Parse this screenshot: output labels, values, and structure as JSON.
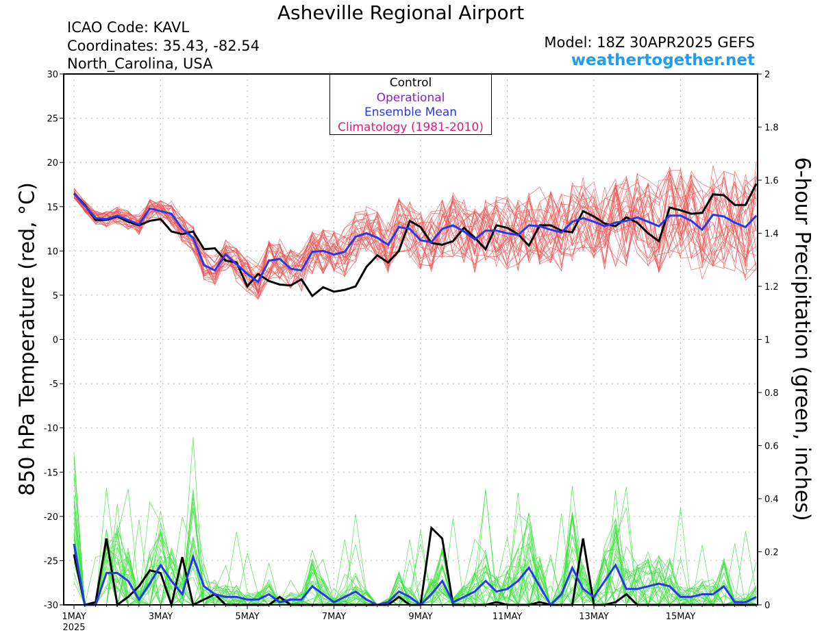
{
  "header": {
    "title": "Asheville Regional Airport",
    "icao": "ICAO Code: KAVL",
    "coords": "Coordinates: 35.43, -82.54",
    "location": "North_Carolina, USA",
    "model": "Model: 18Z 30APR2025 GEFS",
    "site": "weathertogether.net"
  },
  "legend": {
    "control": "Control",
    "operational": "Operational",
    "mean": "Ensemble Mean",
    "climatology": "Climatology (1981-2010)"
  },
  "colors": {
    "control": "#000000",
    "operational": "#8a1cd6",
    "mean": "#2438ee",
    "climatology": "#e8177d",
    "members_temp": "#f05050",
    "members_precip": "#3ee23e"
  },
  "chart_data": {
    "type": "line",
    "ylabel": "850 hPa Temperature (red, °C)",
    "y2label": "6-hour Precipitation (green, inches)",
    "ylim": [
      -30,
      30
    ],
    "y2lim": [
      0,
      2
    ],
    "yticks": [
      "30",
      "25",
      "20",
      "15",
      "10",
      "5",
      "0",
      "-5",
      "-10",
      "-15",
      "-20",
      "-25",
      "-30"
    ],
    "y2ticks": [
      "2",
      "1.8",
      "1.6",
      "1.4",
      "1.2",
      "1",
      "0.8",
      "0.6",
      "0.4",
      "0.2",
      "0"
    ],
    "xticks": [
      {
        "day": 1,
        "label": "1MAY",
        "sub": "2025"
      },
      {
        "day": 3,
        "label": "3MAY",
        "sub": ""
      },
      {
        "day": 5,
        "label": "5MAY",
        "sub": ""
      },
      {
        "day": 7,
        "label": "7MAY",
        "sub": ""
      },
      {
        "day": 9,
        "label": "9MAY",
        "sub": ""
      },
      {
        "day": 11,
        "label": "11MAY",
        "sub": ""
      },
      {
        "day": 13,
        "label": "13MAY",
        "sub": ""
      },
      {
        "day": 15,
        "label": "15MAY",
        "sub": ""
      }
    ],
    "xrange_days": [
      1,
      17
    ],
    "grid": true,
    "legend_position": "top-center",
    "step_days": 0.25,
    "series": [
      {
        "name": "Control",
        "axis": "temp",
        "values": [
          16.5,
          15.2,
          13.5,
          13.5,
          13.9,
          13.3,
          12.9,
          13.4,
          13.6,
          12.2,
          11.9,
          12.2,
          10.2,
          10.3,
          8.9,
          8.7,
          6.0,
          7.4,
          6.6,
          6.2,
          6.1,
          6.8,
          4.9,
          5.9,
          5.4,
          5.6,
          6.0,
          8.2,
          9.5,
          8.7,
          10.0,
          13.4,
          12.7,
          10.9,
          10.7,
          11.1,
          12.6,
          11.5,
          10.2,
          12.9,
          12.6,
          11.9,
          10.6,
          12.9,
          12.9,
          12.3,
          12.1,
          14.5,
          13.9,
          13.1,
          12.8,
          13.8,
          13.2,
          12.0,
          11.1,
          14.9,
          14.6,
          14.2,
          14.3,
          16.4,
          16.3,
          15.2,
          15.2,
          17.6
        ]
      },
      {
        "name": "Ensemble Mean",
        "axis": "temp",
        "values": [
          16.5,
          15.1,
          13.7,
          13.6,
          14.0,
          13.5,
          13.0,
          14.8,
          14.5,
          14.2,
          12.5,
          11.5,
          8.4,
          7.8,
          9.6,
          8.5,
          7.4,
          6.5,
          8.9,
          9.1,
          8.0,
          7.8,
          9.9,
          10.0,
          9.6,
          9.9,
          11.6,
          12.0,
          11.5,
          10.7,
          12.7,
          12.5,
          11.2,
          11.0,
          12.5,
          12.9,
          12.2,
          11.3,
          12.3,
          12.3,
          12.0,
          11.8,
          12.9,
          12.8,
          12.4,
          12.1,
          13.3,
          13.7,
          13.3,
          12.8,
          13.2,
          13.4,
          13.8,
          13.3,
          12.8,
          14.0,
          14.0,
          13.4,
          12.4,
          14.1,
          13.9,
          13.2,
          12.7,
          14.0
        ]
      },
      {
        "name": "Control precip",
        "axis": "precip",
        "values": [
          0.19,
          0.0,
          0.01,
          0.25,
          0.0,
          0.03,
          0.07,
          0.13,
          0.12,
          0.0,
          0.18,
          0.0,
          0.02,
          0.04,
          0.0,
          0.0,
          0.0,
          0.0,
          0.0,
          0.03,
          0.0,
          0.0,
          0.0,
          0.0,
          0.0,
          0.0,
          0.0,
          0.0,
          0.0,
          0.0,
          0.03,
          0.0,
          0.0,
          0.29,
          0.25,
          0.0,
          0.0,
          0.0,
          0.0,
          0.01,
          0.0,
          0.0,
          0.0,
          0.01,
          0.0,
          0.0,
          0.0,
          0.25,
          0.0,
          0.0,
          0.01,
          0.04,
          0.0,
          0.0,
          0.0,
          0.0,
          0.0,
          0.0,
          0.0,
          0.0,
          0.0,
          0.0,
          0.0,
          0.0
        ]
      },
      {
        "name": "Ensemble Mean precip",
        "axis": "precip",
        "values": [
          0.23,
          0.0,
          0.0,
          0.12,
          0.12,
          0.09,
          0.02,
          0.08,
          0.15,
          0.09,
          0.04,
          0.18,
          0.07,
          0.04,
          0.03,
          0.03,
          0.02,
          0.02,
          0.04,
          0.01,
          0.02,
          0.02,
          0.07,
          0.04,
          0.01,
          0.03,
          0.05,
          0.02,
          0.0,
          0.01,
          0.05,
          0.03,
          0.0,
          0.04,
          0.09,
          0.01,
          0.03,
          0.05,
          0.09,
          0.05,
          0.06,
          0.09,
          0.14,
          0.07,
          0.0,
          0.04,
          0.14,
          0.06,
          0.03,
          0.09,
          0.15,
          0.06,
          0.06,
          0.07,
          0.08,
          0.07,
          0.03,
          0.03,
          0.04,
          0.04,
          0.07,
          0.01,
          0.01,
          0.03
        ]
      }
    ]
  }
}
